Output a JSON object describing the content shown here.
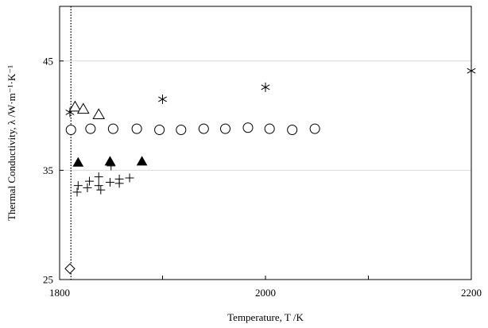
{
  "chart_data": {
    "type": "scatter",
    "xlabel": "Temperature, T /K",
    "ylabel": "Thermal Conductivity, λ /W·m⁻¹·K⁻¹",
    "xlim": [
      1800,
      2200
    ],
    "ylim": [
      25,
      50
    ],
    "x_ticks": [
      1800,
      2000,
      2200
    ],
    "x_tick_labels": [
      "1800",
      "2000",
      "2200"
    ],
    "x_minor_ticks": [
      1900,
      2100
    ],
    "y_ticks": [
      25,
      35,
      45
    ],
    "y_tick_labels": [
      "25",
      "35",
      "45"
    ],
    "y_gridlines": [
      35,
      45
    ],
    "grid": "horizontal",
    "legend": "none",
    "vertical_reference_line": {
      "x": 1811,
      "style": "dotted"
    },
    "colors": {
      "marker": "#000000",
      "grid": "#d9d9d9",
      "axis": "#000000"
    },
    "series": [
      {
        "marker": "asterisk",
        "x": [
          1810,
          1900,
          2000,
          2200
        ],
        "y": [
          40.3,
          41.5,
          42.6,
          44.1
        ]
      },
      {
        "marker": "open-triangle",
        "x": [
          1815,
          1823,
          1838
        ],
        "y": [
          40.8,
          40.6,
          40.1
        ]
      },
      {
        "marker": "open-circle",
        "x": [
          1811,
          1830,
          1852,
          1875,
          1897,
          1918,
          1940,
          1961,
          1983,
          2004,
          2026,
          2048
        ],
        "y": [
          38.7,
          38.8,
          38.8,
          38.8,
          38.7,
          38.7,
          38.8,
          38.8,
          38.9,
          38.8,
          38.7,
          38.8
        ]
      },
      {
        "marker": "filled-triangle",
        "x": [
          1818,
          1849,
          1880
        ],
        "y": [
          35.7,
          35.8,
          35.8
        ]
      },
      {
        "marker": "plus",
        "x": [
          1817,
          1818,
          1827,
          1829,
          1838,
          1838,
          1840,
          1849,
          1850,
          1858,
          1858,
          1868
        ],
        "y": [
          33.0,
          33.6,
          33.4,
          34.0,
          34.4,
          33.6,
          33.2,
          33.9,
          35.4,
          34.2,
          33.8,
          34.3
        ]
      },
      {
        "marker": "open-diamond",
        "x": [
          1810
        ],
        "y": [
          26.0
        ]
      }
    ]
  }
}
